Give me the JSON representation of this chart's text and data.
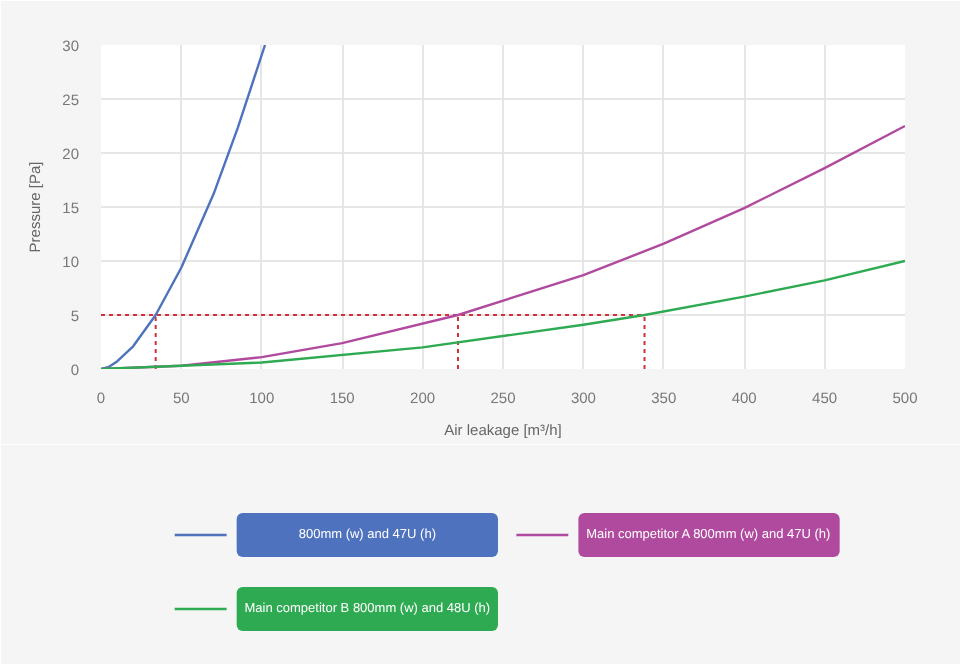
{
  "chart_data": {
    "type": "line",
    "xlabel": "Air leakage [m³/h]",
    "ylabel": "Pressure [Pa]",
    "xlim": [
      0,
      500
    ],
    "ylim": [
      0,
      30
    ],
    "xticks": [
      0,
      50,
      100,
      150,
      200,
      250,
      300,
      350,
      400,
      450,
      500
    ],
    "yticks": [
      0,
      5,
      10,
      15,
      20,
      25,
      30
    ],
    "grid": true,
    "legend": "bottom",
    "marker": "none",
    "line_style": "solid",
    "series": [
      {
        "name": "800mm (w) and 47U (h)",
        "color": "#4e72bd",
        "x": [
          0,
          5,
          10,
          20,
          34,
          50,
          70,
          85,
          102
        ],
        "values": [
          0,
          0.2,
          0.7,
          2.1,
          5,
          9.4,
          16.2,
          22.3,
          30
        ]
      },
      {
        "name": "Main competitor A 800mm (w) and 47U (h)",
        "color": "#b04a9f",
        "x": [
          0,
          50,
          100,
          150,
          222,
          300,
          350,
          400,
          450,
          500
        ],
        "values": [
          0,
          0.3,
          1.1,
          2.4,
          5,
          8.7,
          11.6,
          14.9,
          18.6,
          22.5
        ]
      },
      {
        "name": "Main competitor B 800mm (w) and 48U (h)",
        "color": "#2eaa52",
        "x": [
          0,
          100,
          200,
          300,
          338,
          400,
          450,
          500
        ],
        "values": [
          0,
          0.6,
          2,
          4.1,
          5,
          6.7,
          8.2,
          10
        ]
      }
    ],
    "ref_lines": [
      {
        "axis": "y",
        "value": 5,
        "color": "#d0313a",
        "line_style": "dotted"
      },
      {
        "axis": "x",
        "value": 34,
        "color": "#d0313a",
        "line_style": "dotted"
      },
      {
        "axis": "x",
        "value": 222,
        "color": "#d0313a",
        "line_style": "dotted"
      },
      {
        "axis": "x",
        "value": 338,
        "color": "#d0313a",
        "line_style": "dotted"
      }
    ]
  }
}
